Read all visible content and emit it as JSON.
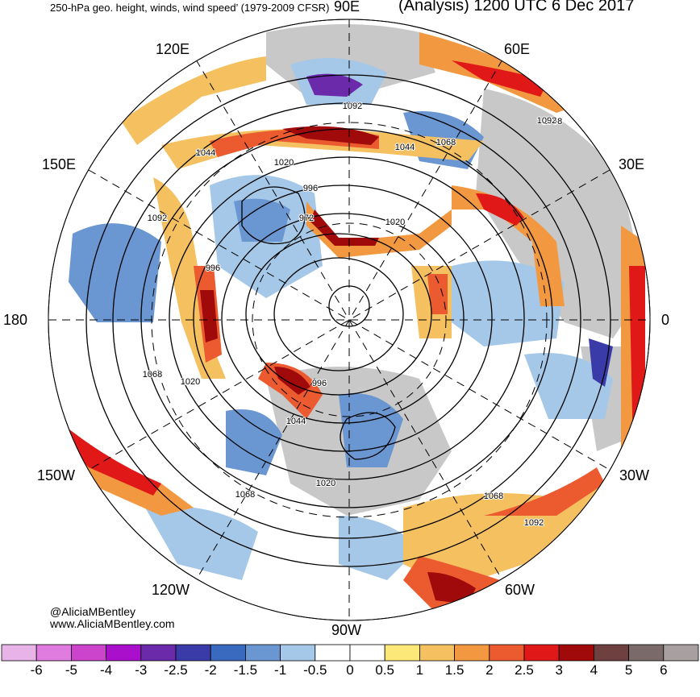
{
  "header": {
    "title_left": "250-hPa geo. height, winds, wind speed’ (1979-2009 CFSR)",
    "title_right": "(Analysis) 1200 UTC 6 Dec 2017"
  },
  "longitude_labels": [
    "90E",
    "60E",
    "30E",
    "0",
    "30W",
    "60W",
    "90W",
    "120W",
    "150W",
    "180",
    "150E",
    "120E"
  ],
  "contour_labels": [
    "1092",
    "1068",
    "1044",
    "1020",
    "996",
    "972",
    "1092",
    "1044",
    "1068",
    "996",
    "1020",
    "996",
    "1068",
    "1044",
    "1020",
    "1068",
    "1068",
    "1092",
    "1092",
    "1020"
  ],
  "credits": {
    "handle": "@AliciaMBentley",
    "website": "www.AliciaMBentley.com"
  },
  "colorbar": {
    "labels": [
      "-6",
      "-5",
      "-4",
      "-3",
      "-2.5",
      "-2",
      "-1.5",
      "-1",
      "-0.5",
      "0",
      "0.5",
      "1",
      "1.5",
      "2",
      "2.5",
      "3",
      "4",
      "5",
      "6"
    ],
    "colors": [
      "#e8b4e8",
      "#e07ce0",
      "#cc44cc",
      "#aa10cc",
      "#6a2aaa",
      "#3a3aa8",
      "#3a6ac0",
      "#6a96d2",
      "#a6c8e8",
      "#ffffff",
      "#ffffff",
      "#fce878",
      "#f4c060",
      "#f29840",
      "#ec5a30",
      "#e01818",
      "#a00a0a",
      "#6e4040",
      "#7a6a6a",
      "#a8a0a0"
    ]
  }
}
